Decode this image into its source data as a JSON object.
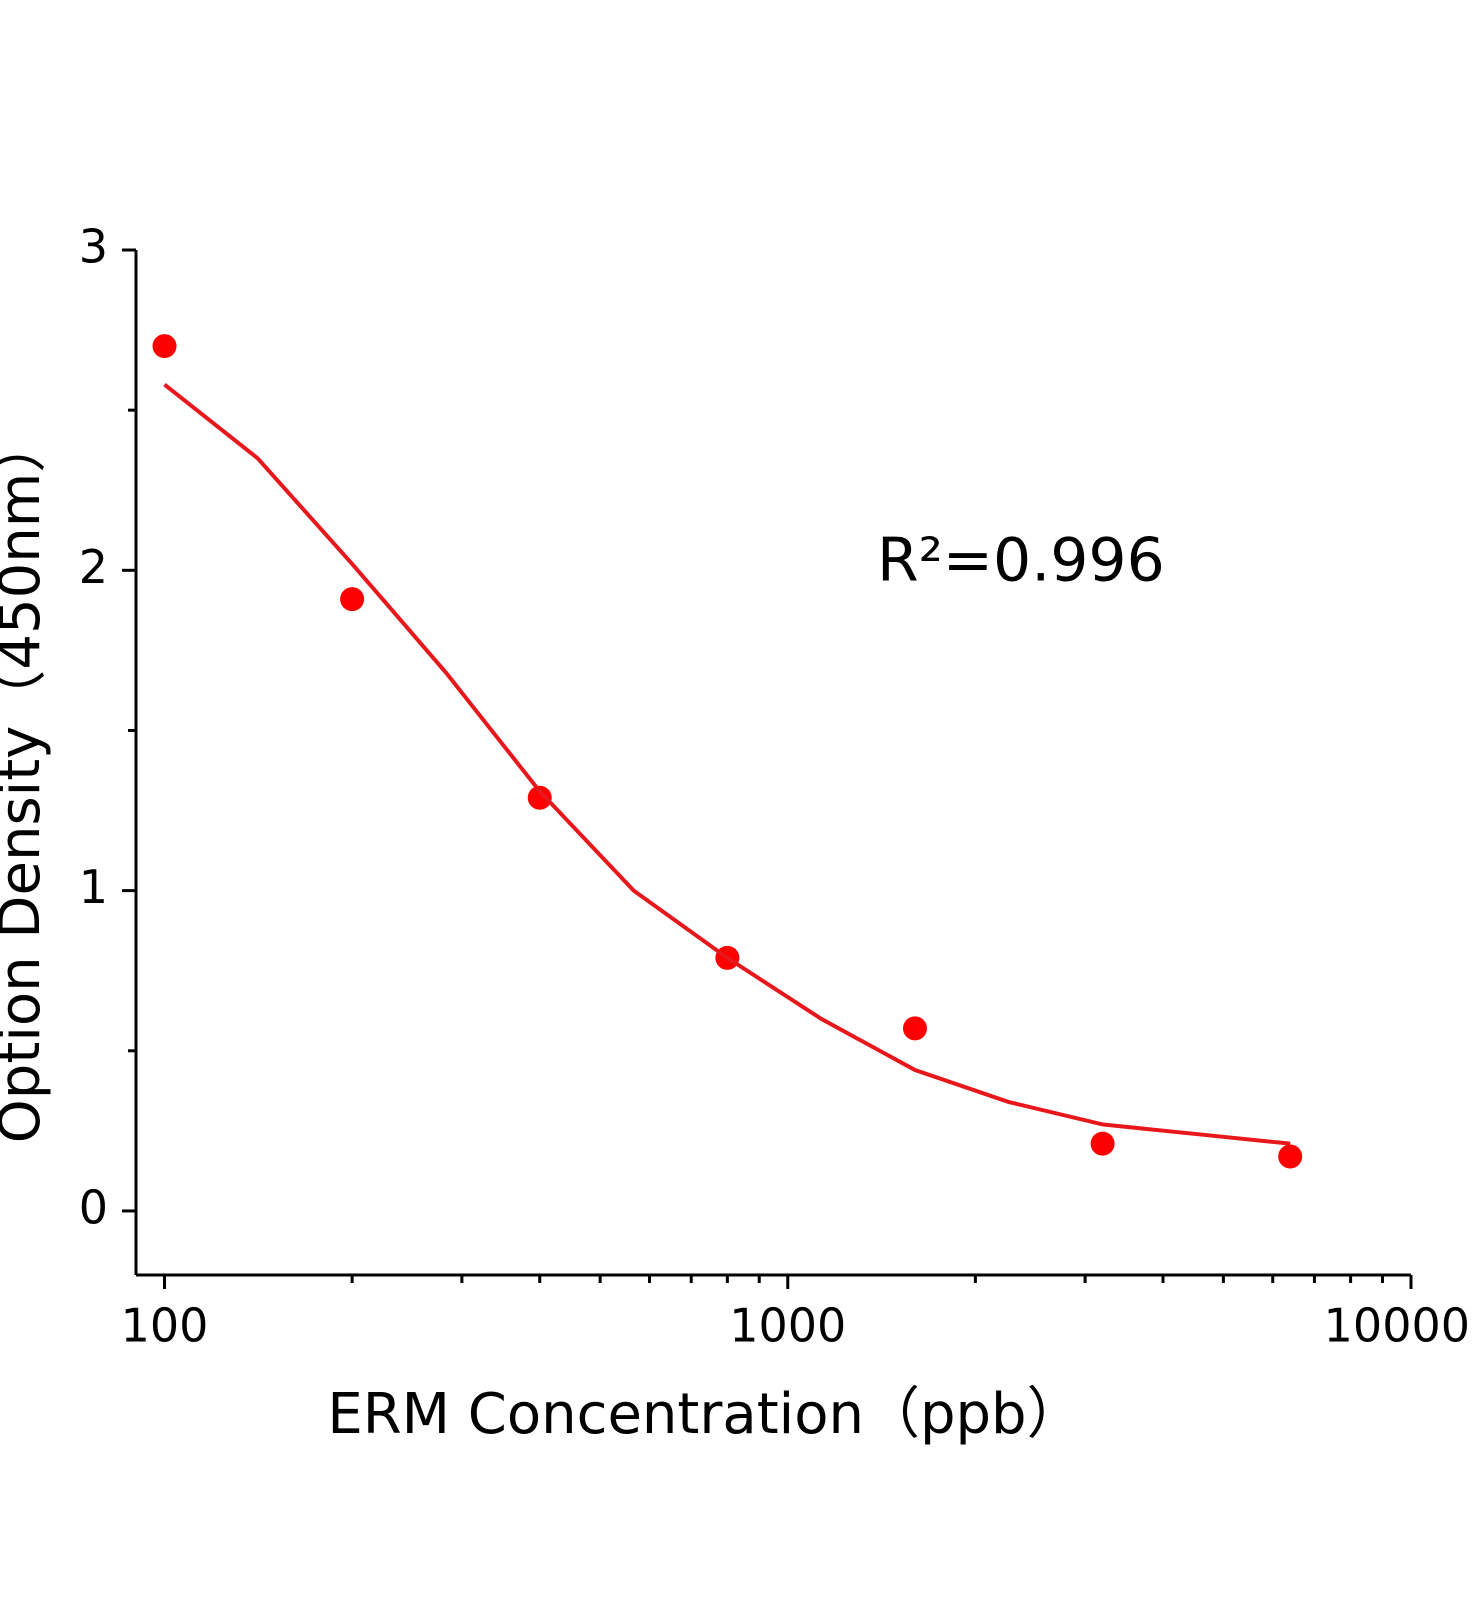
{
  "chart_data": {
    "type": "scatter",
    "x_label": "ERM Concentration（ppb）",
    "y_label": "Option Density（450nm）",
    "annotation": "R²=0.996",
    "x_log": true,
    "xlim": [
      90,
      10000
    ],
    "xticks": [
      100,
      1000,
      10000
    ],
    "xminorticks": [
      200,
      300,
      400,
      500,
      600,
      700,
      800,
      900,
      2000,
      3000,
      4000,
      5000,
      6000,
      7000,
      8000,
      9000
    ],
    "ylim": [
      -0.2,
      3
    ],
    "yticks": [
      0,
      1,
      2,
      3
    ],
    "yminorticks": [
      0.5,
      1.5,
      2.5
    ],
    "series": [
      {
        "type": "scatter",
        "color": "#ff0000",
        "x": [
          100,
          200,
          400,
          800,
          1600,
          3200,
          6400
        ],
        "values": [
          2.7,
          1.91,
          1.29,
          0.79,
          0.57,
          0.21,
          0.17
        ]
      },
      {
        "type": "line",
        "color": "#e8171b",
        "x": [
          100,
          141,
          200,
          283,
          400,
          566,
          800,
          1131,
          1600,
          2263,
          3200,
          4525,
          6400
        ],
        "values": [
          2.58,
          2.35,
          2.02,
          1.68,
          1.31,
          1.0,
          0.79,
          0.6,
          0.44,
          0.34,
          0.27,
          0.24,
          0.21
        ]
      }
    ]
  }
}
